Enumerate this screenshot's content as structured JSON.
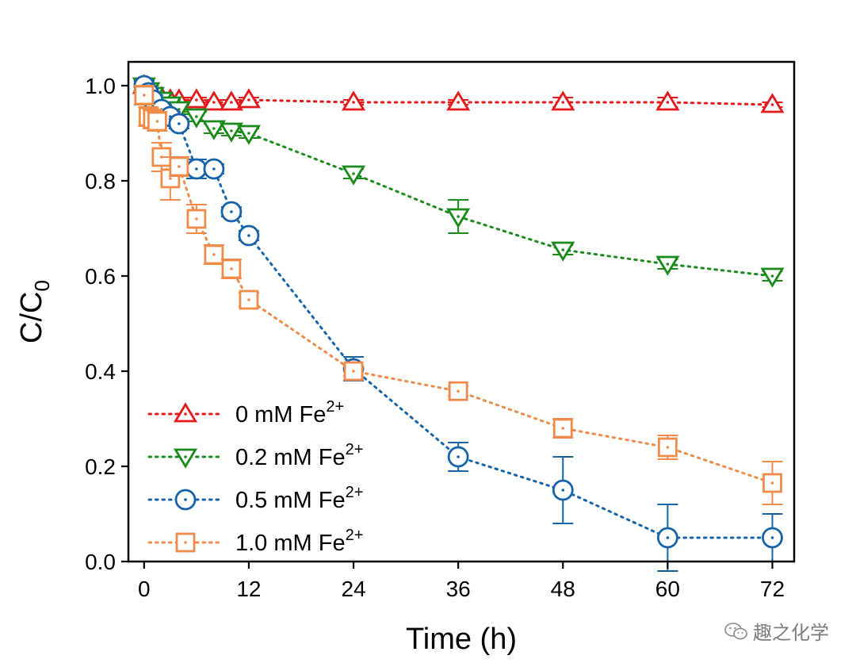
{
  "chart_data": {
    "type": "line",
    "xlabel": "Time (h)",
    "ylabel_main": "C/C",
    "ylabel_sub": "0",
    "xlim": [
      -1.8,
      74.5
    ],
    "ylim": [
      0.0,
      1.05
    ],
    "xticks": [
      0,
      12,
      24,
      36,
      48,
      60,
      72
    ],
    "xtick_labels": [
      "0",
      "12",
      "24",
      "36",
      "48",
      "60",
      "72"
    ],
    "yticks": [
      0.0,
      0.2,
      0.4,
      0.6,
      0.8,
      1.0
    ],
    "ytick_labels": [
      "0.0",
      "0.2",
      "0.4",
      "0.6",
      "0.8",
      "1.0"
    ],
    "legend_position": "bottom-left",
    "series": [
      {
        "name": "0 mM Fe",
        "superscript": "2+",
        "color": "#e31a1c",
        "marker": "triangle-up",
        "x": [
          0,
          0.5,
          1,
          2,
          3,
          4,
          6,
          8,
          10,
          12,
          24,
          36,
          48,
          60,
          72
        ],
        "y": [
          1.0,
          0.99,
          0.98,
          0.975,
          0.97,
          0.97,
          0.97,
          0.965,
          0.965,
          0.97,
          0.965,
          0.965,
          0.965,
          0.965,
          0.96
        ],
        "err": [
          0.01,
          0.01,
          0.01,
          0.01,
          0.005,
          0.005,
          0.005,
          0.005,
          0.005,
          0.005,
          0.005,
          0.005,
          0.01,
          0.01,
          0.005
        ]
      },
      {
        "name": "0.2 mM Fe",
        "superscript": "2+",
        "color": "#1a8a1a",
        "marker": "triangle-down",
        "x": [
          0,
          0.5,
          1,
          2,
          3,
          4,
          6,
          8,
          10,
          12,
          24,
          36,
          48,
          60,
          72
        ],
        "y": [
          1.0,
          0.99,
          0.98,
          0.97,
          0.96,
          0.95,
          0.935,
          0.91,
          0.905,
          0.9,
          0.815,
          0.725,
          0.655,
          0.625,
          0.6
        ],
        "err": [
          0.01,
          0.01,
          0.01,
          0.01,
          0.01,
          0.01,
          0.01,
          0.01,
          0.01,
          0.01,
          0.01,
          0.035,
          0.01,
          0.01,
          0.01
        ]
      },
      {
        "name": "0.5 mM Fe",
        "superscript": "2+",
        "color": "#1763a8",
        "marker": "circle",
        "x": [
          0,
          0.5,
          1,
          2,
          3,
          4,
          6,
          8,
          10,
          12,
          24,
          36,
          48,
          60,
          72
        ],
        "y": [
          1.0,
          0.985,
          0.97,
          0.95,
          0.935,
          0.92,
          0.825,
          0.825,
          0.735,
          0.685,
          0.405,
          0.22,
          0.15,
          0.05,
          0.05
        ],
        "err": [
          0.01,
          0.01,
          0.01,
          0.01,
          0.01,
          0.01,
          0.02,
          0.01,
          0.01,
          0.01,
          0.025,
          0.03,
          0.07,
          0.07,
          0.05
        ]
      },
      {
        "name": "1.0 mM Fe",
        "superscript": "2+",
        "color": "#f08c4a",
        "marker": "square",
        "x": [
          0,
          0.5,
          1,
          1.5,
          2,
          3,
          4,
          6,
          8,
          10,
          12,
          24,
          36,
          48,
          60,
          72
        ],
        "y": [
          0.98,
          0.935,
          0.93,
          0.925,
          0.85,
          0.805,
          0.83,
          0.72,
          0.645,
          0.615,
          0.55,
          0.4,
          0.358,
          0.28,
          0.24,
          0.165
        ],
        "err": [
          0.02,
          0.02,
          0.02,
          0.02,
          0.03,
          0.045,
          0.02,
          0.03,
          0.02,
          0.02,
          0.015,
          0.01,
          0.01,
          0.02,
          0.025,
          0.045
        ]
      }
    ]
  },
  "watermark": {
    "text": "趣之化学",
    "icon": "wechat-icon"
  }
}
